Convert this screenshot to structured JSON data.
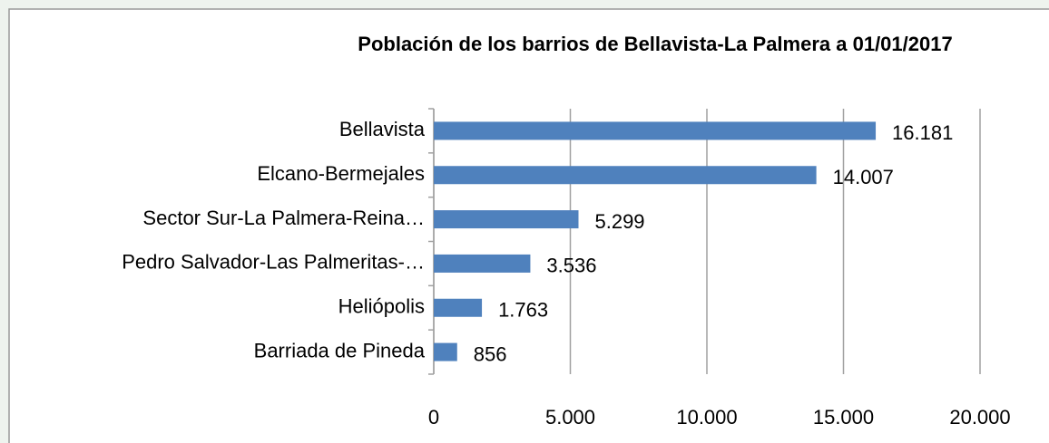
{
  "chart_data": {
    "type": "barh",
    "title": "Población de los barrios de Bellavista-La Palmera a 01/01/2017",
    "categories": [
      "Bellavista",
      "Elcano-Bermejales",
      "Sector Sur-La Palmera-Reina…",
      "Pedro Salvador-Las Palmeritas-…",
      "Heliópolis",
      "Barriada de Pineda"
    ],
    "values": [
      16181,
      14007,
      5299,
      3536,
      1763,
      856
    ],
    "value_labels": [
      "16.181",
      "14.007",
      "5.299",
      "3.536",
      "1.763",
      "856"
    ],
    "color": "#4f81bd",
    "xlim": [
      0,
      20000
    ],
    "xticks": [
      0,
      {
        "value": 5000,
        "label": "5.000"
      },
      {
        "value": 10000,
        "label": "10.000"
      },
      {
        "value": 15000,
        "label": "15.000"
      },
      {
        "value": 20000,
        "label": "20.000"
      }
    ],
    "grid": true
  }
}
